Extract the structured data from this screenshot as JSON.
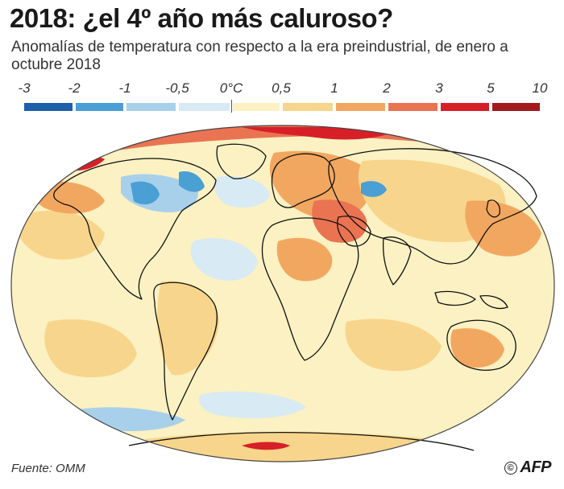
{
  "title": "2018: ¿el 4º año más caluroso?",
  "subtitle": "Anomalías de temperatura con respecto a la era preindustrial, de enero a octubre 2018",
  "legend": {
    "labels": [
      "-3",
      "-2",
      "-1",
      "-0,5",
      "0°C",
      "0,5",
      "1",
      "2",
      "3",
      "5",
      "10"
    ],
    "colors": [
      "#1d5fa8",
      "#4a9fd4",
      "#a8d0ea",
      "#d8eaf3",
      "#fbf1c2",
      "#f8d58c",
      "#f2a760",
      "#ea7352",
      "#d71f28",
      "#a31a1e"
    ]
  },
  "map": {
    "ocean_base_color": "#fbf1c2",
    "coastline_color": "#111111"
  },
  "footer": {
    "source": "Fuente: OMM",
    "copyright_symbol": "©",
    "agency": "AFP"
  }
}
